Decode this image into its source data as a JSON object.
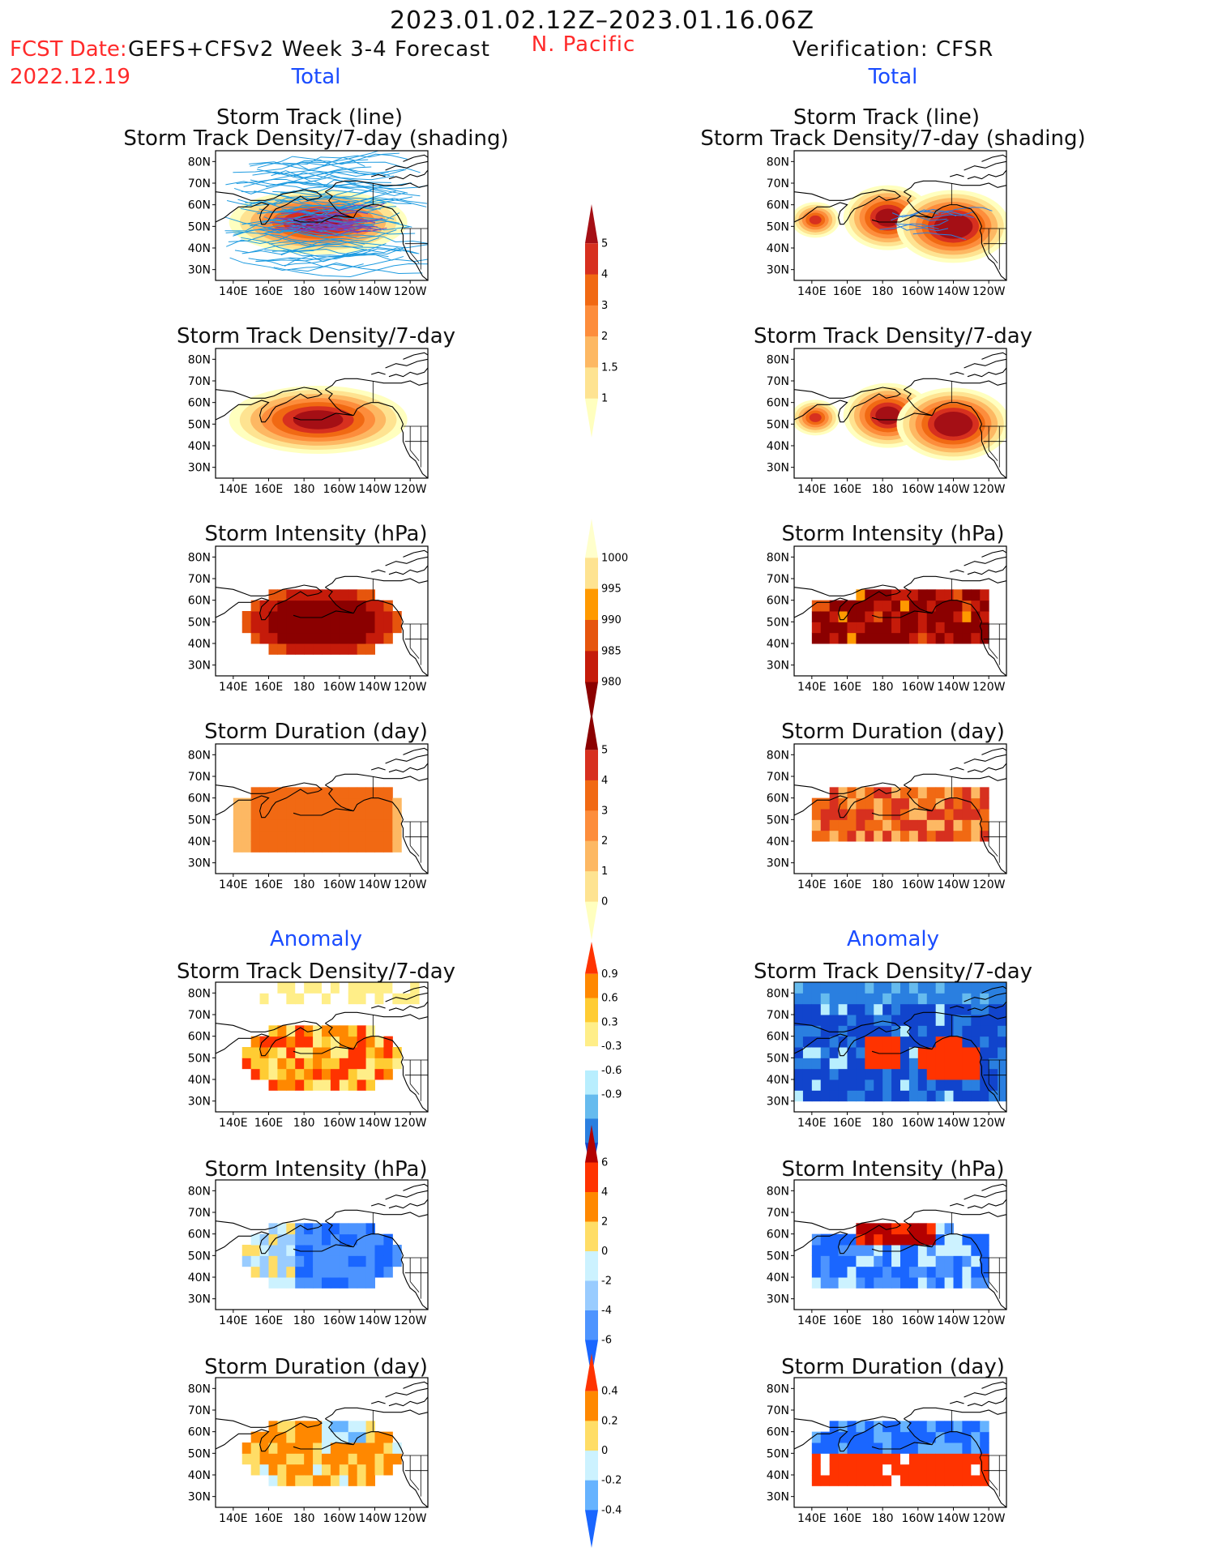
{
  "header": {
    "period": "2023.01.02.12Z–2023.01.16.06Z",
    "fcst_prefix": "FCST Date:",
    "fcst_model": "GEFS+CFSv2 Week 3-4 Forecast",
    "fcst_date": "2022.12.19",
    "region": "N. Pacific",
    "verification": "Verification: CFSR",
    "total_left": "Total",
    "total_right": "Total",
    "anomaly_left": "Anomaly",
    "anomaly_right": "Anomaly"
  },
  "axes": {
    "lat_labels": [
      "80N",
      "70N",
      "60N",
      "50N",
      "40N",
      "30N"
    ],
    "lon_labels": [
      "140E",
      "160E",
      "180",
      "160W",
      "140W",
      "120W"
    ]
  },
  "panels": {
    "r1": {
      "title1": "Storm Track (line)",
      "title2": "Storm Track Density/7-day (shading)"
    },
    "r2": {
      "title": "Storm Track Density/7-day"
    },
    "r3": {
      "title": "Storm Intensity (hPa)"
    },
    "r4": {
      "title": "Storm Duration (day)"
    },
    "r5": {
      "title": "Storm Track Density/7-day"
    },
    "r6": {
      "title": "Storm Intensity (hPa)"
    },
    "r7": {
      "title": "Storm Duration (day)"
    }
  },
  "colorbars": {
    "density_total": {
      "labels": [
        "5",
        "4",
        "3",
        "2",
        "1.5",
        "1"
      ],
      "colors": [
        "#a50f15",
        "#d7301f",
        "#f16913",
        "#fd8d3c",
        "#fdb863",
        "#fee391",
        "#ffffbf"
      ]
    },
    "intensity_total": {
      "labels": [
        "1000",
        "995",
        "990",
        "985",
        "980"
      ],
      "colors": [
        "#ffffcc",
        "#fee391",
        "#ff9900",
        "#e6550d",
        "#c51b0a",
        "#8b0000"
      ]
    },
    "duration_total": {
      "labels": [
        "5",
        "4",
        "3",
        "2",
        "1",
        "0"
      ],
      "colors": [
        "#8b0000",
        "#d7301f",
        "#f16913",
        "#fd8d3c",
        "#fdb863",
        "#fee391",
        "#ffffbf"
      ]
    },
    "density_anom": {
      "labels": [
        "0.9",
        "0.6",
        "0.3",
        "-0.3",
        "-0.6",
        "-0.9"
      ],
      "colors": [
        "#ff3300",
        "#ff8800",
        "#ffcc33",
        "#ffee88",
        "#ffffff",
        "#b8eefe",
        "#66bbee",
        "#2a7fe0",
        "#1144cc"
      ]
    },
    "intensity_anom": {
      "labels": [
        "6",
        "4",
        "2",
        "0",
        "-2",
        "-4",
        "-6"
      ],
      "colors": [
        "#b30000",
        "#ff3300",
        "#ff8800",
        "#ffdd66",
        "#ccf2ff",
        "#99ccff",
        "#4d94ff",
        "#1a66ff"
      ]
    },
    "duration_anom": {
      "labels": [
        "0.4",
        "0.2",
        "0",
        "-0.2",
        "-0.4"
      ],
      "colors": [
        "#ff3300",
        "#ff8800",
        "#ffdd66",
        "#ccf2ff",
        "#66b3ff",
        "#1a66ff"
      ]
    }
  }
}
